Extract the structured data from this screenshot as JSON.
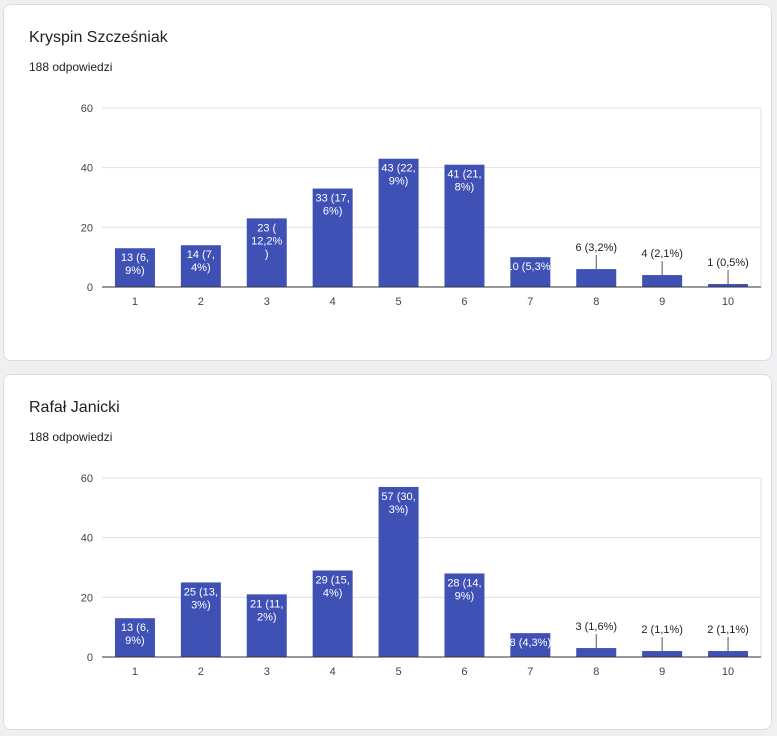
{
  "colors": {
    "bar": "#3f51b5",
    "label_inside": "#ffffff",
    "label_outside": "#222222"
  },
  "chart_data": [
    {
      "type": "bar",
      "title": "Kryspin Szcześniak",
      "subtitle": "188 odpowiedzi",
      "categories": [
        "1",
        "2",
        "3",
        "4",
        "5",
        "6",
        "7",
        "8",
        "9",
        "10"
      ],
      "values": [
        13,
        14,
        23,
        33,
        43,
        41,
        10,
        6,
        4,
        1
      ],
      "labels": [
        [
          "13 (6,",
          "9%)"
        ],
        [
          "14 (7,",
          "4%)"
        ],
        [
          "23 (",
          "12,2%",
          ")"
        ],
        [
          "33 (17,",
          "6%)"
        ],
        [
          "43 (22,",
          "9%)"
        ],
        [
          "41 (21,",
          "8%)"
        ],
        [
          "10 (5,3%)"
        ],
        [
          "6 (3,2%)"
        ],
        [
          "4 (2,1%)"
        ],
        [
          "1 (0,5%)"
        ]
      ],
      "ylim": [
        0,
        60
      ],
      "yticks": [
        0,
        20,
        40,
        60
      ],
      "grid": true
    },
    {
      "type": "bar",
      "title": "Rafał Janicki",
      "subtitle": "188 odpowiedzi",
      "categories": [
        "1",
        "2",
        "3",
        "4",
        "5",
        "6",
        "7",
        "8",
        "9",
        "10"
      ],
      "values": [
        13,
        25,
        21,
        29,
        57,
        28,
        8,
        3,
        2,
        2
      ],
      "labels": [
        [
          "13 (6,",
          "9%)"
        ],
        [
          "25 (13,",
          "3%)"
        ],
        [
          "21 (11,",
          "2%)"
        ],
        [
          "29 (15,",
          "4%)"
        ],
        [
          "57 (30,",
          "3%)"
        ],
        [
          "28 (14,",
          "9%)"
        ],
        [
          "8 (4,3%)"
        ],
        [
          "3 (1,6%)"
        ],
        [
          "2 (1,1%)"
        ],
        [
          "2 (1,1%)"
        ]
      ],
      "ylim": [
        0,
        60
      ],
      "yticks": [
        0,
        20,
        40,
        60
      ],
      "grid": true
    }
  ]
}
